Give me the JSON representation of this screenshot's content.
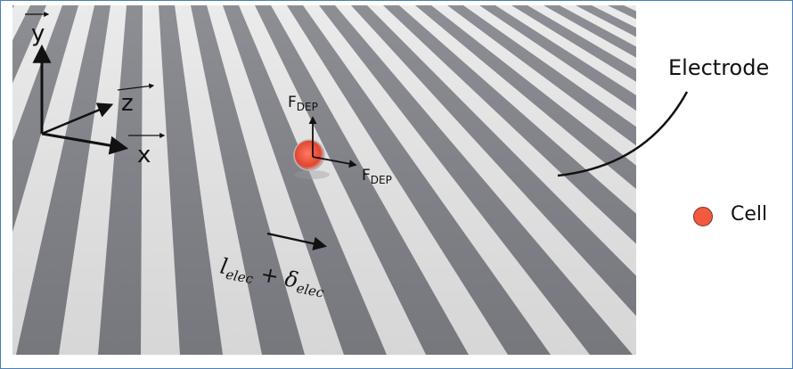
{
  "axes": {
    "y_label": "y",
    "z_label": "z",
    "x_label": "x"
  },
  "forces": {
    "vertical_label": "F",
    "vertical_sub": "DEP",
    "horizontal_label": "F",
    "horizontal_sub": "DEP"
  },
  "spacing_label": {
    "l": "l",
    "l_sub": "elec",
    "plus": " + ",
    "delta": "δ",
    "delta_sub": "elec"
  },
  "legend": {
    "electrode_label": "Electrode",
    "cell_label": "Cell",
    "cell_color": "#f2593f"
  },
  "colors": {
    "frame": "#4a7fb5",
    "electrode_dark": "#6f7078",
    "gap_light": "#e9e9ea"
  }
}
